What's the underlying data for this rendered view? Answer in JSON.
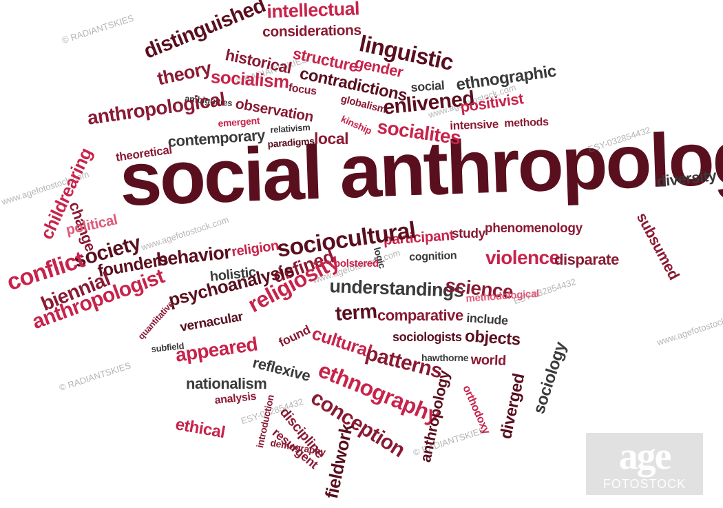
{
  "headline": "social anthropology",
  "words": [
    "intellectual",
    "considerations",
    "distinguished",
    "linguistic",
    "historical",
    "structure",
    "gender",
    "theory",
    "socialism",
    "contradictions",
    "social",
    "ethnographic",
    "ambiguities",
    "focus",
    "globalism",
    "observation",
    "enlivened",
    "positivist",
    "anthropological",
    "emergent",
    "relativism",
    "kinship",
    "socialites",
    "intensive",
    "methods",
    "theoretical",
    "contemporary",
    "paradigms",
    "local",
    "childrearing",
    "change",
    "diversity",
    "political",
    "subsumed",
    "participant",
    "study",
    "phenomenology",
    "religion",
    "sociocultural",
    "logic",
    "cognition",
    "violence",
    "disparate",
    "society",
    "behavior",
    "bolstered",
    "conflict",
    "founders",
    "holistic",
    "defined",
    "understandings",
    "science",
    "biennial",
    "methodological",
    "anthropologist",
    "psychoanalysis",
    "religiosity",
    "term",
    "comparative",
    "include",
    "quantitative",
    "subfield",
    "vernacular",
    "found",
    "cultural",
    "sociologists",
    "objects",
    "appeared",
    "reflexive",
    "patterns",
    "hawthorne",
    "world",
    "ethnography",
    "nationalism",
    "sociology",
    "orthodoxy",
    "diverged",
    "analysis",
    "conception",
    "anthropology",
    "ethical",
    "discipline",
    "introduction",
    "resurgent",
    "demography",
    "fieldwork"
  ],
  "watermarks": {
    "radiantskies": "© RADIANTSKIES",
    "agefotostock": "www.agefotostock.com",
    "esy": "ESY-032854432"
  },
  "logo": {
    "main": "age",
    "sub": "FOTOSTOCK"
  },
  "colors": {
    "dark": "#5a0f1e",
    "red": "#c8234b",
    "pink": "#e05a78",
    "gray": "#3a3a3a",
    "maroon": "#8a1a33"
  }
}
